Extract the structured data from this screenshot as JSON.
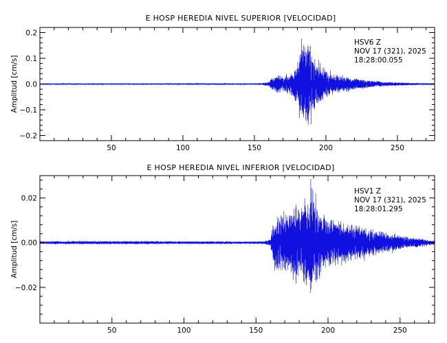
{
  "colors": {
    "trace": "#1010e0",
    "axes": "#000000",
    "background": "#ffffff"
  },
  "chart_data": [
    {
      "type": "line",
      "title": "E HOSP HEREDIA NIVEL SUPERIOR [VELOCIDAD]",
      "ylabel": "Amplitud [cm/s]",
      "xlabel": "",
      "xlim": [
        0,
        276
      ],
      "ylim": [
        -0.22,
        0.22
      ],
      "xticks": [
        50,
        100,
        150,
        200,
        250
      ],
      "xtick_labels": [
        "50",
        "100",
        "150",
        "200",
        "250"
      ],
      "yticks": [
        0.2,
        0.1,
        0.0,
        -0.1,
        -0.2
      ],
      "ytick_labels": [
        "0.2",
        "0.1",
        "0.0",
        "−0.1",
        "−0.2"
      ],
      "annotation": [
        "HSV6   Z",
        "NOV 17 (321), 2025",
        "18:28:00.055"
      ],
      "grid": false,
      "series": [
        {
          "color": "#1010e0",
          "envelope": {
            "t": [
              0,
              30,
              60,
              90,
              120,
              140,
              155,
              160,
              163,
              166,
              170,
              175,
              178,
              181,
              183,
              185,
              187,
              189,
              191,
              193,
              196,
              200,
              205,
              210,
              215,
              220,
              230,
              240,
              250,
              260,
              270,
              276
            ],
            "amp": [
              0.003,
              0.003,
              0.003,
              0.003,
              0.004,
              0.003,
              0.004,
              0.012,
              0.035,
              0.045,
              0.04,
              0.05,
              0.08,
              0.12,
              0.2,
              0.19,
              0.21,
              0.2,
              0.16,
              0.12,
              0.09,
              0.07,
              0.05,
              0.04,
              0.035,
              0.03,
              0.02,
              0.012,
              0.009,
              0.006,
              0.004,
              0.004
            ]
          }
        }
      ]
    },
    {
      "type": "line",
      "title": "E HOSP HEREDIA NIVEL INFERIOR [VELOCIDAD]",
      "ylabel": "Amplitud [cm/s]",
      "xlabel": "",
      "xlim": [
        0,
        274
      ],
      "ylim": [
        -0.036,
        0.03
      ],
      "xticks": [
        50,
        100,
        150,
        200,
        250
      ],
      "xtick_labels": [
        "50",
        "100",
        "150",
        "200",
        "250"
      ],
      "yticks": [
        0.02,
        0.0,
        -0.02
      ],
      "ytick_labels": [
        "0.02",
        "0.00",
        "−0.02"
      ],
      "annotation": [
        "HSV1   Z",
        "NOV 17 (321), 2025",
        "18:28:01.295"
      ],
      "grid": false,
      "series": [
        {
          "color": "#1010e0",
          "envelope": {
            "t": [
              0,
              30,
              60,
              90,
              120,
              140,
              155,
              160,
              162,
              165,
              170,
              175,
              178,
              181,
              184,
              186,
              188,
              190,
              193,
              196,
              200,
              205,
              210,
              215,
              220,
              230,
              240,
              250,
              260,
              270,
              274
            ],
            "amp": [
              0.0008,
              0.0009,
              0.0009,
              0.0008,
              0.0008,
              0.0007,
              0.0008,
              0.002,
              0.012,
              0.016,
              0.018,
              0.018,
              0.024,
              0.02,
              0.026,
              0.024,
              0.034,
              0.028,
              0.022,
              0.016,
              0.014,
              0.013,
              0.012,
              0.011,
              0.01,
              0.008,
              0.006,
              0.004,
              0.003,
              0.0015,
              0.0012
            ]
          }
        }
      ]
    }
  ]
}
